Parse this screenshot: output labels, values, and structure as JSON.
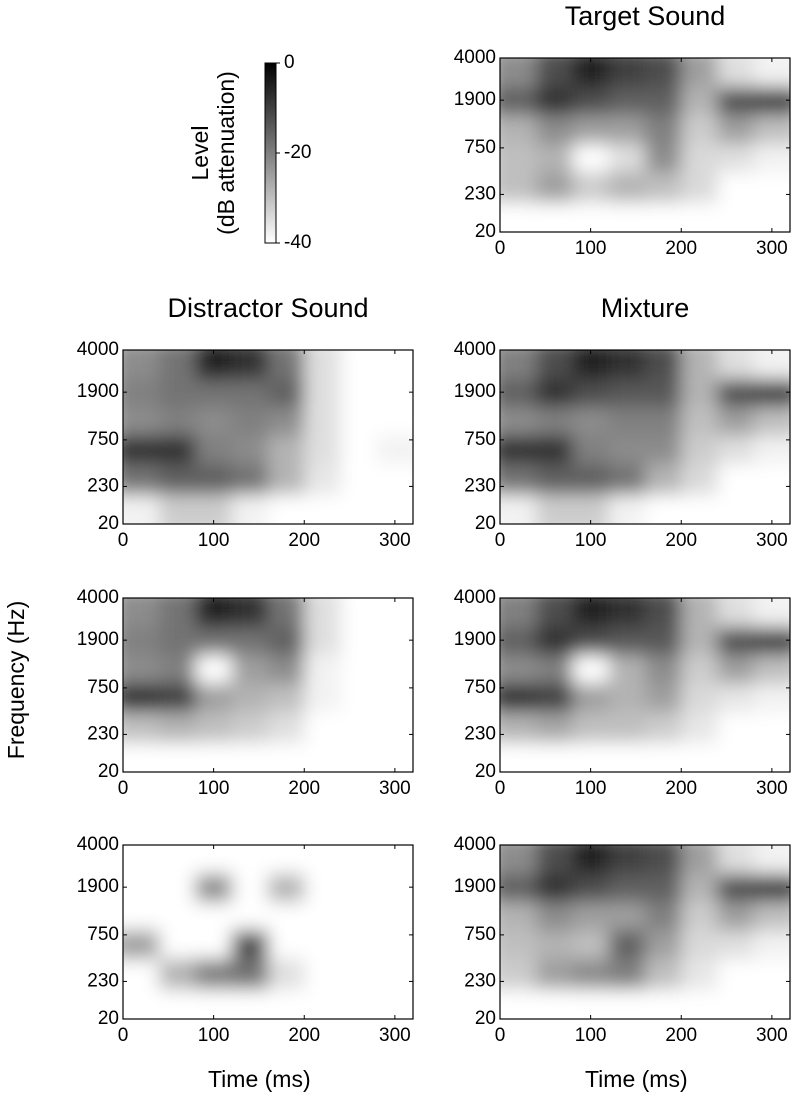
{
  "ylabel": "Frequency (Hz)",
  "colorbar": {
    "label": [
      "Level",
      "(dB attenuation)"
    ],
    "lim": [
      -40,
      0
    ],
    "ticks": [
      0,
      -20,
      -40
    ]
  },
  "chart_data": [
    {
      "type": "heatmap",
      "title": "Target Sound",
      "xlim": [
        0,
        320
      ],
      "xticks": [
        0,
        100,
        200,
        300
      ],
      "ylim": [
        20,
        4000
      ],
      "yticks": [
        20,
        230,
        750,
        1900,
        4000
      ],
      "yscale": "erb",
      "x": [
        20,
        60,
        100,
        140,
        180,
        220,
        260,
        300
      ],
      "y": [
        3000,
        1900,
        1100,
        600,
        300,
        80
      ],
      "values": [
        [
          -22,
          -12,
          -5,
          -10,
          -12,
          -25,
          -35,
          -38
        ],
        [
          -15,
          -8,
          -12,
          -15,
          -15,
          -28,
          -12,
          -10
        ],
        [
          -28,
          -22,
          -25,
          -25,
          -20,
          -32,
          -25,
          -30
        ],
        [
          -30,
          -28,
          -40,
          -35,
          -22,
          -34,
          -35,
          -38
        ],
        [
          -30,
          -25,
          -32,
          -28,
          -30,
          -34,
          -40,
          -40
        ],
        [
          -40,
          -40,
          -40,
          -40,
          -40,
          -40,
          -40,
          -40
        ]
      ]
    },
    {
      "type": "heatmap",
      "title": "Distractor Sound",
      "xlim": [
        0,
        320
      ],
      "xticks": [
        0,
        100,
        200,
        300
      ],
      "ylim": [
        20,
        4000
      ],
      "yticks": [
        20,
        230,
        750,
        1900,
        4000
      ],
      "yscale": "erb",
      "x": [
        20,
        60,
        100,
        140,
        180,
        220,
        260,
        300
      ],
      "y": [
        3000,
        1900,
        1100,
        600,
        300,
        80
      ],
      "values": [
        [
          -22,
          -18,
          -5,
          -8,
          -18,
          -35,
          -40,
          -40
        ],
        [
          -20,
          -18,
          -18,
          -18,
          -15,
          -35,
          -40,
          -40
        ],
        [
          -22,
          -20,
          -22,
          -20,
          -22,
          -35,
          -40,
          -40
        ],
        [
          -8,
          -8,
          -20,
          -22,
          -28,
          -35,
          -40,
          -38
        ],
        [
          -18,
          -15,
          -15,
          -18,
          -28,
          -36,
          -40,
          -40
        ],
        [
          -38,
          -32,
          -32,
          -38,
          -40,
          -40,
          -40,
          -40
        ]
      ]
    },
    {
      "type": "heatmap",
      "title": "Mixture",
      "xlim": [
        0,
        320
      ],
      "xticks": [
        0,
        100,
        200,
        300
      ],
      "ylim": [
        20,
        4000
      ],
      "yticks": [
        20,
        230,
        750,
        1900,
        4000
      ],
      "yscale": "erb",
      "x": [
        20,
        60,
        100,
        140,
        180,
        220,
        260,
        300
      ],
      "y": [
        3000,
        1900,
        1100,
        600,
        300,
        80
      ],
      "values": [
        [
          -20,
          -12,
          -5,
          -8,
          -12,
          -28,
          -35,
          -38
        ],
        [
          -15,
          -8,
          -12,
          -14,
          -14,
          -28,
          -12,
          -10
        ],
        [
          -22,
          -20,
          -22,
          -20,
          -20,
          -30,
          -25,
          -30
        ],
        [
          -8,
          -8,
          -20,
          -22,
          -22,
          -32,
          -35,
          -38
        ],
        [
          -18,
          -15,
          -15,
          -18,
          -28,
          -34,
          -40,
          -40
        ],
        [
          -38,
          -32,
          -32,
          -38,
          -40,
          -40,
          -40,
          -40
        ]
      ]
    },
    {
      "type": "heatmap",
      "xlim": [
        0,
        320
      ],
      "xticks": [
        0,
        100,
        200,
        300
      ],
      "ylim": [
        20,
        4000
      ],
      "yticks": [
        20,
        230,
        750,
        1900,
        4000
      ],
      "yscale": "erb",
      "x": [
        20,
        60,
        100,
        140,
        180,
        220,
        260,
        300
      ],
      "y": [
        3000,
        1900,
        1100,
        600,
        300,
        80
      ],
      "values": [
        [
          -22,
          -18,
          -5,
          -8,
          -18,
          -35,
          -40,
          -40
        ],
        [
          -20,
          -18,
          -18,
          -18,
          -15,
          -35,
          -40,
          -40
        ],
        [
          -22,
          -20,
          -40,
          -25,
          -22,
          -38,
          -40,
          -40
        ],
        [
          -8,
          -10,
          -25,
          -28,
          -30,
          -38,
          -40,
          -40
        ],
        [
          -30,
          -28,
          -30,
          -32,
          -35,
          -40,
          -40,
          -40
        ],
        [
          -40,
          -40,
          -40,
          -40,
          -40,
          -40,
          -40,
          -40
        ]
      ]
    },
    {
      "type": "heatmap",
      "xlim": [
        0,
        320
      ],
      "xticks": [
        0,
        100,
        200,
        300
      ],
      "ylim": [
        20,
        4000
      ],
      "yticks": [
        20,
        230,
        750,
        1900,
        4000
      ],
      "yscale": "erb",
      "x": [
        20,
        60,
        100,
        140,
        180,
        220,
        260,
        300
      ],
      "y": [
        3000,
        1900,
        1100,
        600,
        300,
        80
      ],
      "values": [
        [
          -20,
          -12,
          -5,
          -8,
          -12,
          -28,
          -35,
          -38
        ],
        [
          -15,
          -8,
          -12,
          -14,
          -14,
          -28,
          -12,
          -10
        ],
        [
          -22,
          -20,
          -40,
          -28,
          -22,
          -32,
          -25,
          -30
        ],
        [
          -8,
          -10,
          -25,
          -28,
          -25,
          -34,
          -36,
          -38
        ],
        [
          -28,
          -26,
          -30,
          -30,
          -32,
          -36,
          -40,
          -40
        ],
        [
          -40,
          -40,
          -40,
          -40,
          -40,
          -40,
          -40,
          -40
        ]
      ]
    },
    {
      "type": "heatmap",
      "xlabel": "Time (ms)",
      "xlim": [
        0,
        320
      ],
      "xticks": [
        0,
        100,
        200,
        300
      ],
      "ylim": [
        20,
        4000
      ],
      "yticks": [
        20,
        230,
        750,
        1900,
        4000
      ],
      "yscale": "erb",
      "x": [
        20,
        60,
        100,
        140,
        180,
        220,
        260,
        300
      ],
      "y": [
        3000,
        1900,
        1100,
        600,
        300,
        80
      ],
      "values": [
        [
          -40,
          -40,
          -40,
          -40,
          -40,
          -40,
          -40,
          -40
        ],
        [
          -40,
          -40,
          -22,
          -40,
          -28,
          -40,
          -40,
          -40
        ],
        [
          -40,
          -40,
          -40,
          -40,
          -40,
          -40,
          -40,
          -40
        ],
        [
          -25,
          -40,
          -40,
          -12,
          -40,
          -40,
          -40,
          -40
        ],
        [
          -40,
          -28,
          -20,
          -18,
          -35,
          -40,
          -40,
          -40
        ],
        [
          -40,
          -40,
          -40,
          -40,
          -40,
          -40,
          -40,
          -40
        ]
      ]
    },
    {
      "type": "heatmap",
      "xlabel": "Time (ms)",
      "xlim": [
        0,
        320
      ],
      "xticks": [
        0,
        100,
        200,
        300
      ],
      "ylim": [
        20,
        4000
      ],
      "yticks": [
        20,
        230,
        750,
        1900,
        4000
      ],
      "yscale": "erb",
      "x": [
        20,
        60,
        100,
        140,
        180,
        220,
        260,
        300
      ],
      "y": [
        3000,
        1900,
        1100,
        600,
        300,
        80
      ],
      "values": [
        [
          -22,
          -12,
          -5,
          -10,
          -12,
          -25,
          -35,
          -38
        ],
        [
          -15,
          -8,
          -12,
          -15,
          -15,
          -28,
          -12,
          -10
        ],
        [
          -28,
          -22,
          -25,
          -25,
          -20,
          -32,
          -25,
          -30
        ],
        [
          -30,
          -28,
          -30,
          -15,
          -25,
          -34,
          -35,
          -38
        ],
        [
          -32,
          -25,
          -22,
          -20,
          -30,
          -36,
          -40,
          -40
        ],
        [
          -40,
          -40,
          -40,
          -40,
          -40,
          -40,
          -40,
          -40
        ]
      ]
    }
  ]
}
